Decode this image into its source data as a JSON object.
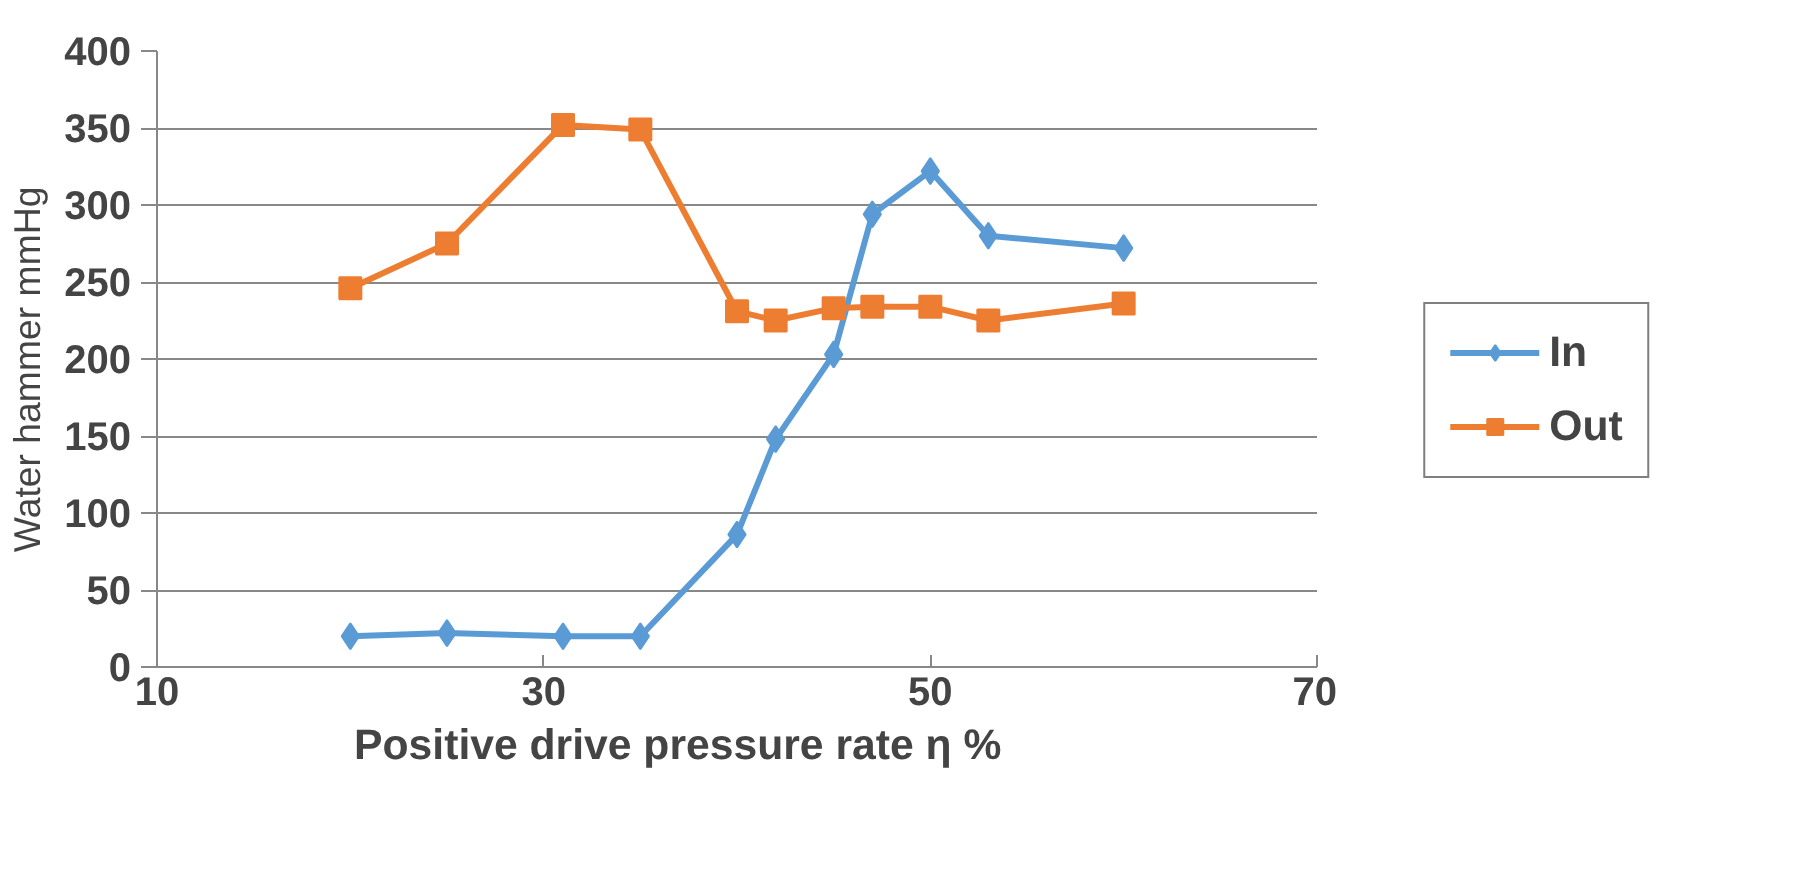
{
  "chart_data": {
    "type": "line",
    "xlabel": "Positive drive pressure rate    η        %",
    "ylabel": "Water  hammer  mmHg",
    "x": [
      20,
      25,
      31,
      35,
      40,
      42,
      45,
      47,
      50,
      53,
      60
    ],
    "series": [
      {
        "name": "In",
        "color": "#5b9bd5",
        "marker": "diamond",
        "values": [
          20,
          22,
          20,
          20,
          86,
          148,
          203,
          294,
          322,
          280,
          272
        ]
      },
      {
        "name": "Out",
        "color": "#ed7d31",
        "marker": "square",
        "values": [
          246,
          275,
          352,
          349,
          231,
          225,
          233,
          234,
          234,
          225,
          236
        ]
      }
    ],
    "xlim": [
      10,
      70
    ],
    "xticks": [
      10,
      30,
      50,
      70
    ],
    "ylim": [
      0,
      400
    ],
    "yticks": [
      0,
      50,
      100,
      150,
      200,
      250,
      300,
      350,
      400
    ],
    "grid": "y",
    "legend": "right"
  }
}
